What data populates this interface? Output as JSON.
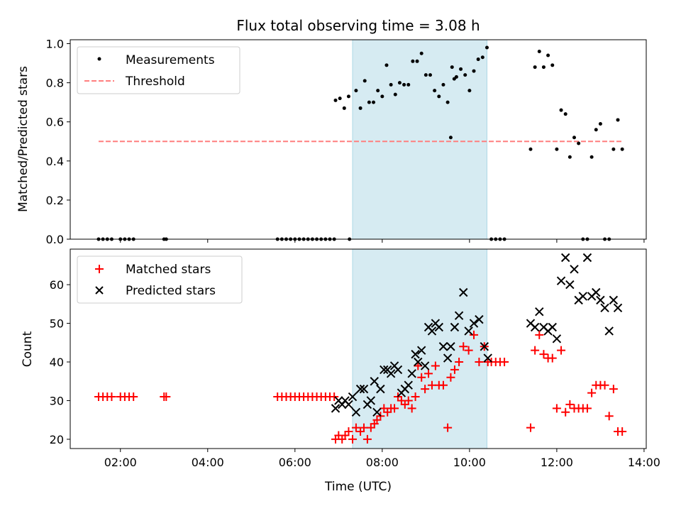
{
  "chart_data": {
    "type": "scatter",
    "title": "Flux total observing time = 3.08 h",
    "xlabel": "Time (UTC)",
    "x_unit": "hours UTC",
    "xlim": [
      0.85,
      14.05
    ],
    "xticks": [
      2,
      4,
      6,
      8,
      10,
      12,
      14
    ],
    "xtick_labels": [
      "02:00",
      "04:00",
      "06:00",
      "08:00",
      "10:00",
      "12:00",
      "14:00"
    ],
    "observing_window": [
      7.32,
      10.4
    ],
    "top": {
      "ylabel": "Matched/Predicted stars",
      "ylim": [
        0,
        1.02
      ],
      "yticks": [
        0.0,
        0.2,
        0.4,
        0.6,
        0.8,
        1.0
      ],
      "ytick_labels": [
        "0.0",
        "0.2",
        "0.4",
        "0.6",
        "0.8",
        "1.0"
      ],
      "legend_position": "top-left",
      "threshold": {
        "name": "Threshold",
        "value": 0.5,
        "x_range": [
          1.5,
          13.5
        ],
        "color": "#ff7f7f"
      },
      "measurements": {
        "name": "Measurements",
        "color": "#000000",
        "x": [
          1.5,
          1.6,
          1.7,
          1.8,
          2.0,
          2.1,
          2.2,
          2.3,
          3.0,
          3.05,
          5.6,
          5.7,
          5.8,
          5.9,
          6.0,
          6.1,
          6.2,
          6.3,
          6.4,
          6.5,
          6.6,
          6.7,
          6.8,
          6.9,
          7.25,
          6.93,
          7.03,
          7.13,
          7.23,
          7.4,
          7.5,
          7.6,
          7.7,
          7.8,
          7.9,
          8.0,
          8.1,
          8.2,
          8.3,
          8.4,
          8.5,
          8.6,
          8.7,
          8.8,
          8.9,
          9.0,
          9.1,
          9.2,
          9.3,
          9.4,
          9.5,
          9.6,
          9.7,
          9.8,
          9.9,
          10.0,
          10.1,
          10.2,
          10.3,
          10.4,
          9.57,
          9.65,
          10.5,
          10.6,
          10.7,
          10.8,
          11.4,
          11.5,
          11.6,
          11.7,
          11.8,
          11.9,
          12.0,
          12.1,
          12.2,
          12.3,
          12.4,
          12.5,
          12.6,
          12.7,
          12.8,
          12.9,
          13.0,
          13.1,
          13.2,
          13.3,
          13.4,
          13.5
        ],
        "y": [
          0,
          0,
          0,
          0,
          0,
          0,
          0,
          0,
          0,
          0,
          0,
          0,
          0,
          0,
          0,
          0,
          0,
          0,
          0,
          0,
          0,
          0,
          0,
          0,
          0,
          0.71,
          0.72,
          0.67,
          0.73,
          0.76,
          0.67,
          0.81,
          0.7,
          0.7,
          0.76,
          0.73,
          0.89,
          0.79,
          0.74,
          0.8,
          0.79,
          0.79,
          0.91,
          0.91,
          0.95,
          0.84,
          0.84,
          0.76,
          0.73,
          0.79,
          0.7,
          0.88,
          0.83,
          0.87,
          0.84,
          0.76,
          0.86,
          0.92,
          0.93,
          0.98,
          0.52,
          0.82,
          0,
          0,
          0,
          0,
          0.46,
          0.88,
          0.96,
          0.88,
          0.94,
          0.89,
          0.46,
          0.66,
          0.64,
          0.42,
          0.52,
          0.49,
          0,
          0,
          0.42,
          0.56,
          0.59,
          0,
          0,
          0.46,
          0.61,
          0.46
        ]
      }
    },
    "bottom": {
      "ylabel": "Count",
      "ylim": [
        17.6,
        69.2
      ],
      "yticks": [
        20,
        30,
        40,
        50,
        60
      ],
      "ytick_labels": [
        "20",
        "30",
        "40",
        "50",
        "60"
      ],
      "legend_position": "top-left",
      "matched": {
        "name": "Matched stars",
        "color": "#ff0000",
        "x": [
          1.5,
          1.6,
          1.7,
          1.8,
          2.0,
          2.1,
          2.2,
          2.3,
          3.0,
          3.05,
          5.6,
          5.7,
          5.8,
          5.9,
          6.0,
          6.1,
          6.2,
          6.3,
          6.4,
          6.5,
          6.6,
          6.7,
          6.8,
          6.9,
          6.93,
          7.0,
          7.08,
          7.15,
          7.23,
          7.32,
          7.4,
          7.5,
          7.58,
          7.66,
          7.74,
          7.82,
          7.88,
          7.96,
          8.04,
          8.12,
          8.2,
          8.28,
          8.36,
          8.44,
          8.52,
          8.6,
          8.68,
          8.76,
          8.82,
          8.9,
          8.98,
          9.06,
          9.14,
          9.22,
          9.3,
          9.4,
          9.5,
          9.57,
          9.66,
          9.76,
          9.86,
          9.98,
          10.1,
          10.22,
          10.34,
          10.42,
          10.5,
          10.6,
          10.7,
          10.8,
          11.4,
          11.5,
          11.6,
          11.7,
          11.8,
          11.9,
          12.0,
          12.1,
          12.2,
          12.3,
          12.4,
          12.5,
          12.6,
          12.7,
          12.8,
          12.9,
          13.0,
          13.1,
          13.2,
          13.3,
          13.4,
          13.5
        ],
        "y": [
          31,
          31,
          31,
          31,
          31,
          31,
          31,
          31,
          31,
          31,
          31,
          31,
          31,
          31,
          31,
          31,
          31,
          31,
          31,
          31,
          31,
          31,
          31,
          31,
          20,
          21,
          20,
          21,
          22,
          20,
          23,
          22,
          23,
          20,
          23,
          24,
          25,
          26,
          28,
          27,
          28,
          28,
          31,
          30,
          29,
          30,
          28,
          31,
          39,
          36,
          33,
          37,
          34,
          39,
          34,
          34,
          23,
          36,
          38,
          40,
          44,
          43,
          47,
          40,
          44,
          40,
          40,
          40,
          40,
          40,
          23,
          43,
          47,
          42,
          41,
          41,
          28,
          43,
          27,
          29,
          28,
          28,
          28,
          28,
          32,
          34,
          34,
          34,
          26,
          33,
          22,
          22
        ]
      },
      "predicted": {
        "name": "Predicted stars",
        "color": "#000000",
        "x": [
          6.93,
          7.0,
          7.08,
          7.15,
          7.23,
          7.32,
          7.4,
          7.5,
          7.58,
          7.66,
          7.74,
          7.82,
          7.88,
          7.96,
          8.04,
          8.12,
          8.2,
          8.28,
          8.36,
          8.44,
          8.52,
          8.6,
          8.68,
          8.76,
          8.82,
          8.9,
          8.98,
          9.06,
          9.14,
          9.22,
          9.3,
          9.4,
          9.5,
          9.57,
          9.66,
          9.76,
          9.86,
          9.98,
          10.1,
          10.22,
          10.34,
          10.42,
          11.4,
          11.5,
          11.6,
          11.7,
          11.8,
          11.9,
          12.0,
          12.1,
          12.2,
          12.3,
          12.4,
          12.5,
          12.6,
          12.7,
          12.8,
          12.9,
          13.0,
          13.1,
          13.2,
          13.3,
          13.4
        ],
        "y": [
          28,
          30,
          29,
          30,
          29,
          31,
          27,
          33,
          33,
          29,
          30,
          35,
          27,
          33,
          38,
          38,
          37,
          39,
          38,
          32,
          33,
          34,
          37,
          42,
          40,
          43,
          39,
          49,
          48,
          50,
          49,
          44,
          41,
          44,
          49,
          52,
          58,
          48,
          50,
          51,
          44,
          41,
          50,
          49,
          53,
          49,
          48,
          49,
          46,
          61,
          67,
          60,
          64,
          56,
          57,
          67,
          57,
          58,
          56,
          54,
          48,
          56,
          54
        ]
      }
    }
  }
}
